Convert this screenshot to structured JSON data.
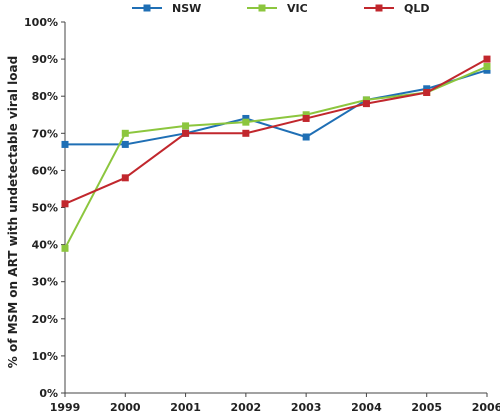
{
  "chart_data": {
    "type": "line",
    "x": [
      "1999",
      "2000",
      "2001",
      "2002",
      "2003",
      "2004",
      "2005",
      "2006"
    ],
    "ylabel": "% of MSM on ART with undetectable viral load",
    "xlabel": "",
    "ylim": [
      0,
      100
    ],
    "yticks": [
      "0%",
      "10%",
      "20%",
      "30%",
      "40%",
      "50%",
      "60%",
      "70%",
      "80%",
      "90%",
      "100%"
    ],
    "grid": false,
    "legend_position": "top",
    "series": [
      {
        "name": "NSW",
        "color": "#1f6fb5",
        "values": [
          67,
          67,
          70,
          74,
          69,
          79,
          82,
          87
        ]
      },
      {
        "name": "VIC",
        "color": "#8cc63e",
        "values": [
          39,
          70,
          72,
          73,
          75,
          79,
          81,
          88
        ]
      },
      {
        "name": "QLD",
        "color": "#c1272d",
        "values": [
          51,
          58,
          70,
          70,
          74,
          78,
          81,
          90
        ]
      }
    ]
  }
}
